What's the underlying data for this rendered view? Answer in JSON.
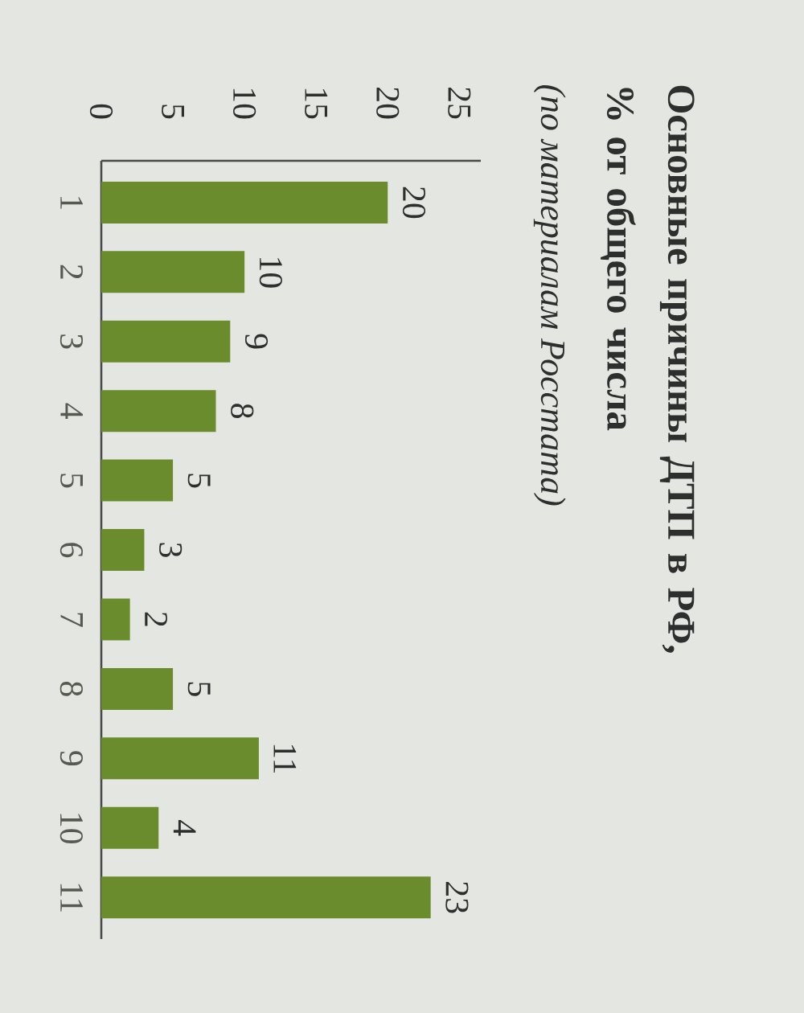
{
  "chart_data": {
    "type": "bar",
    "orientation": "horizontal",
    "title": "Основные причины ДТП в РФ, % от общего числа",
    "subtitle": "(по материалам Росстата)",
    "categories": [
      "1",
      "2",
      "3",
      "4",
      "5",
      "6",
      "7",
      "8",
      "9",
      "10",
      "11"
    ],
    "values": [
      20,
      10,
      9,
      8,
      5,
      3,
      2,
      5,
      11,
      4,
      23
    ],
    "color": "#6b8c2c",
    "xlim": [
      0,
      26.5
    ],
    "xticks": [
      0,
      5,
      10,
      15,
      20,
      25
    ],
    "data_labels": true
  }
}
